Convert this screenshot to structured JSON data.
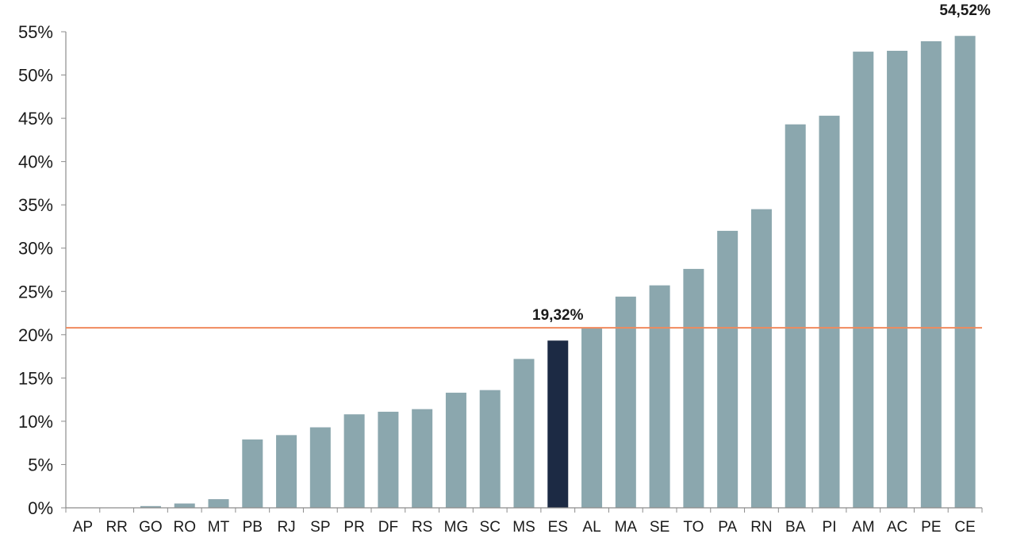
{
  "chart_data": {
    "type": "bar",
    "categories": [
      "AP",
      "RR",
      "GO",
      "RO",
      "MT",
      "PB",
      "RJ",
      "SP",
      "PR",
      "DF",
      "RS",
      "MG",
      "SC",
      "MS",
      "ES",
      "AL",
      "MA",
      "SE",
      "TO",
      "PA",
      "RN",
      "BA",
      "PI",
      "AM",
      "AC",
      "PE",
      "CE"
    ],
    "values": [
      0,
      0,
      0.2,
      0.5,
      1.0,
      7.9,
      8.4,
      9.3,
      10.8,
      11.1,
      11.4,
      13.3,
      13.6,
      17.2,
      19.32,
      20.8,
      24.4,
      25.7,
      27.6,
      32.0,
      34.5,
      44.3,
      45.3,
      52.7,
      52.8,
      53.9,
      54.52
    ],
    "highlight_index": 14,
    "ylim": [
      0,
      55
    ],
    "yticks": [
      0,
      5,
      10,
      15,
      20,
      25,
      30,
      35,
      40,
      45,
      50,
      55
    ],
    "ytick_labels": [
      "0%",
      "5%",
      "10%",
      "15%",
      "20%",
      "25%",
      "30%",
      "35%",
      "40%",
      "45%",
      "50%",
      "55%"
    ],
    "reference_line": 20.8,
    "annotations": [
      {
        "index": 14,
        "text": "19,32%"
      },
      {
        "index": 26,
        "text": "54,52%"
      }
    ],
    "colors": {
      "bar": "#8ba7ae",
      "highlight": "#1c2a44",
      "reference_line": "#f08a5d",
      "axis": "#8c8c8c"
    },
    "title": "",
    "xlabel": "",
    "ylabel": "",
    "grid": false,
    "legend": "none"
  }
}
